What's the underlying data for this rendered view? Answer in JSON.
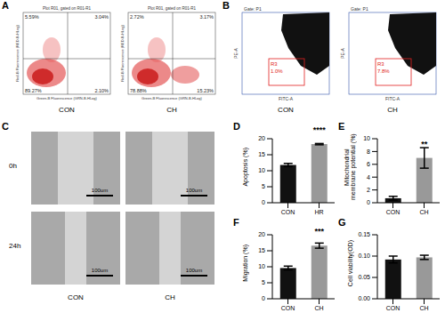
{
  "flow_quadrants": {
    "title": "A",
    "header": "Plot R01, gated on R01-R1",
    "xlabel": "Green-B Fluorescence (GRN-B-HLog)",
    "ylabel": "Red-B Fluorescence (RED-B-HLog)",
    "plots": [
      {
        "group": "CON",
        "quadrants": {
          "upper_left": "5.59%",
          "upper_right": "3.04%",
          "lower_left": "89.27%",
          "lower_right": "2.10%"
        }
      },
      {
        "group": "CH",
        "quadrants": {
          "upper_left": "2.72%",
          "upper_right": "3.17%",
          "lower_left": "78.88%",
          "lower_right": "15.23%"
        }
      }
    ]
  },
  "gate_plots": {
    "title": "B",
    "gate": "Gate: P1",
    "xlabel": "FITC-A",
    "ylabel": "PE-A",
    "region": "R3",
    "plots": [
      {
        "group": "CON",
        "percent": "1.0%"
      },
      {
        "group": "CH",
        "percent": "7.8%"
      }
    ]
  },
  "scratch": {
    "title": "C",
    "rows": [
      "0h",
      "24h"
    ],
    "groups": [
      "CON",
      "CH"
    ],
    "scale_bar": "100um"
  },
  "chart_data": [
    {
      "type": "bar",
      "title": "D",
      "ylabel": "Apoptosis (%)",
      "categories": [
        "CON",
        "HR"
      ],
      "values": [
        11.8,
        18.3
      ],
      "errors": [
        0.5,
        0.2
      ],
      "colors": [
        "#111111",
        "#999999"
      ],
      "ylim": [
        0,
        20
      ],
      "yticks": [
        0,
        5,
        10,
        15,
        20
      ],
      "annotation": "****"
    },
    {
      "type": "bar",
      "title": "E",
      "ylabel": "Mitochondrial membrane potential (%)",
      "categories": [
        "CON",
        "CH"
      ],
      "values": [
        0.7,
        7.0
      ],
      "errors": [
        0.3,
        1.6
      ],
      "colors": [
        "#111111",
        "#999999"
      ],
      "ylim": [
        0,
        10
      ],
      "yticks": [
        0,
        2,
        4,
        6,
        8,
        10
      ],
      "annotation": "**"
    },
    {
      "type": "bar",
      "title": "F",
      "ylabel": "Migration (%)",
      "categories": [
        "CON",
        "CH"
      ],
      "values": [
        9.6,
        16.6
      ],
      "errors": [
        0.6,
        0.8
      ],
      "colors": [
        "#111111",
        "#999999"
      ],
      "ylim": [
        0,
        20
      ],
      "yticks": [
        0,
        5,
        10,
        15,
        20
      ],
      "annotation": "***"
    },
    {
      "type": "bar",
      "title": "G",
      "ylabel": "Cell viability(OD)",
      "categories": [
        "CON",
        "CH"
      ],
      "values": [
        0.092,
        0.097
      ],
      "errors": [
        0.008,
        0.005
      ],
      "colors": [
        "#111111",
        "#999999"
      ],
      "ylim": [
        0,
        0.15
      ],
      "yticks": [
        {
          "value": 0,
          "label": "0.00"
        },
        {
          "value": 0.05,
          "label": "0.05"
        },
        {
          "value": 0.1,
          "label": "0.10"
        },
        {
          "value": 0.15,
          "label": "0.15"
        }
      ]
    }
  ]
}
